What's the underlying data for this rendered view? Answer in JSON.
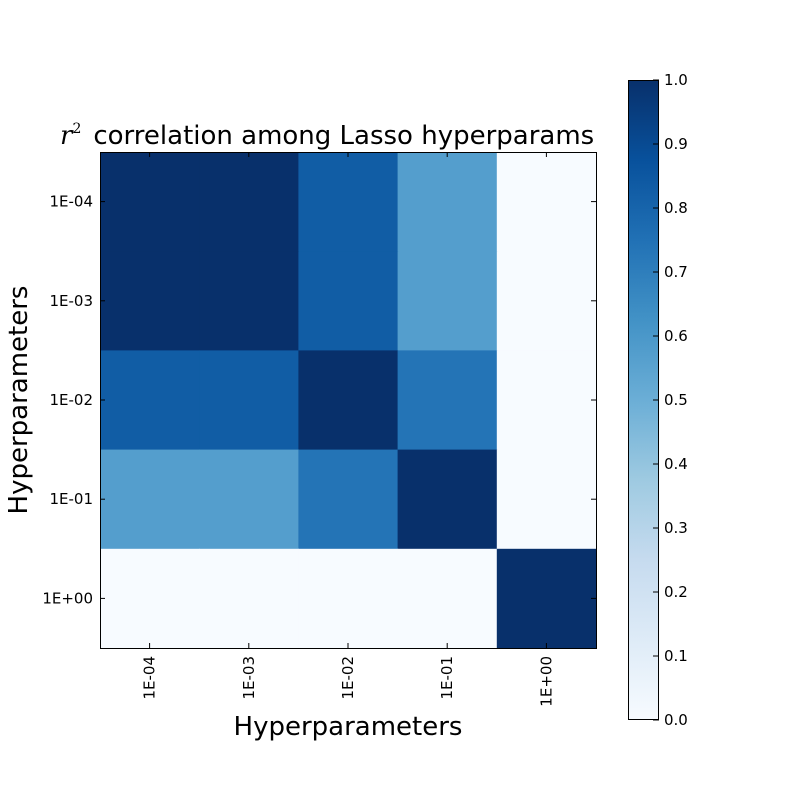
{
  "chart_data": {
    "type": "heatmap",
    "title_prefix": "r",
    "title_prefix_exponent": "2",
    "title": "correlation among Lasso hyperparams",
    "xlabel": "Hyperparameters",
    "ylabel": "Hyperparameters",
    "categories": [
      "1E-04",
      "1E-03",
      "1E-02",
      "1E-01",
      "1E+00"
    ],
    "matrix": [
      [
        1.0,
        1.0,
        0.83,
        0.57,
        0.0
      ],
      [
        1.0,
        1.0,
        0.83,
        0.57,
        0.0
      ],
      [
        0.83,
        0.83,
        1.0,
        0.74,
        0.0
      ],
      [
        0.57,
        0.57,
        0.74,
        1.0,
        0.0
      ],
      [
        0.0,
        0.0,
        0.0,
        0.0,
        1.0
      ]
    ],
    "colorbar": {
      "range": [
        0.0,
        1.0
      ],
      "ticks": [
        "0.0",
        "0.1",
        "0.2",
        "0.3",
        "0.4",
        "0.5",
        "0.6",
        "0.7",
        "0.8",
        "0.9",
        "1.0"
      ],
      "colormap": "Blues",
      "colormap_stops": [
        "#f7fbff",
        "#deebf7",
        "#c6dbef",
        "#9ecae1",
        "#6baed6",
        "#4292c6",
        "#2171b5",
        "#08519c",
        "#08306b"
      ]
    }
  }
}
